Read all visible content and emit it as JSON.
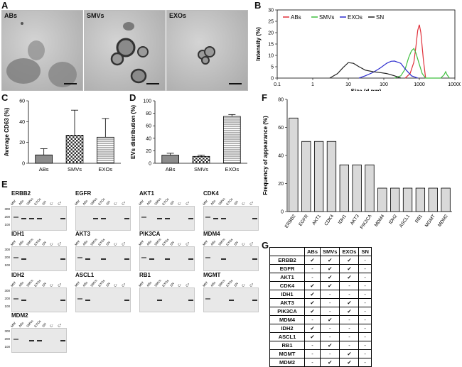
{
  "panels": {
    "A": "A",
    "B": "B",
    "C": "C",
    "D": "D",
    "E": "E",
    "F": "F",
    "G": "G"
  },
  "tem": [
    {
      "label": "ABs"
    },
    {
      "label": "SMVs"
    },
    {
      "label": "EXOs"
    }
  ],
  "chart_data": [
    {
      "type": "line",
      "panel": "B",
      "title": "",
      "xlabel": "Size (d.nm)",
      "ylabel": "Intensity (%)",
      "xscale": "log",
      "xlim": [
        0.1,
        10000
      ],
      "ylim": [
        0,
        30
      ],
      "xticks": [
        "0.1",
        "1",
        "10",
        "100",
        "1000",
        "10000"
      ],
      "yticks": [
        "0",
        "5",
        "10",
        "15",
        "20",
        "25",
        "30"
      ],
      "legend": "top-left",
      "series": [
        {
          "name": "ABs",
          "color": "#e0303a",
          "x": [
            400,
            550,
            700,
            800,
            900,
            1000,
            1100,
            1300,
            1500
          ],
          "y": [
            0,
            2,
            7,
            14,
            21,
            23.5,
            20,
            8,
            0
          ]
        },
        {
          "name": "SMVs",
          "color": "#3fbf3f",
          "x": [
            200,
            300,
            400,
            500,
            600,
            700,
            800,
            1000,
            1200,
            1500,
            4000,
            5000,
            5500,
            6000,
            7000
          ],
          "y": [
            0,
            1,
            4,
            9,
            12,
            13,
            11,
            6,
            2,
            0,
            0,
            1.5,
            2.8,
            1.5,
            0
          ]
        },
        {
          "name": "EXOs",
          "color": "#2e2ecf",
          "x": [
            20,
            30,
            50,
            80,
            120,
            160,
            200,
            300,
            400,
            600,
            900
          ],
          "y": [
            0,
            1,
            2.5,
            4.5,
            6.5,
            7.4,
            7.5,
            6.5,
            4,
            1,
            0
          ]
        },
        {
          "name": "SN",
          "color": "#222222",
          "x": [
            3,
            5,
            7,
            10,
            14,
            20,
            30,
            50,
            80,
            120,
            200,
            300
          ],
          "y": [
            0,
            2,
            4.5,
            6.8,
            6.5,
            5,
            3.5,
            2.8,
            2.4,
            2,
            1,
            0
          ]
        }
      ]
    },
    {
      "type": "bar",
      "panel": "C",
      "ylabel": "Average CD63 (%)",
      "ylim": [
        0,
        60
      ],
      "yticks": [
        "0",
        "20",
        "40",
        "60"
      ],
      "categories": [
        "ABs",
        "SMVs",
        "EXOs"
      ],
      "values": [
        8,
        27,
        25
      ],
      "errors": [
        6,
        24,
        18
      ]
    },
    {
      "type": "bar",
      "panel": "D",
      "ylabel": "EVs distribution (%)",
      "ylim": [
        0,
        100
      ],
      "yticks": [
        "0",
        "20",
        "40",
        "60",
        "80",
        "100"
      ],
      "categories": [
        "ABs",
        "SMVs",
        "EXOs"
      ],
      "values": [
        13,
        11,
        75
      ],
      "errors": [
        3,
        2,
        3
      ]
    },
    {
      "type": "bar",
      "panel": "F",
      "ylabel": "Frequency of appearance (%)",
      "ylim": [
        0,
        80
      ],
      "yticks": [
        "0",
        "20",
        "40",
        "60",
        "80"
      ],
      "categories": [
        "ERBB2",
        "EGFR",
        "AKT1",
        "CDK4",
        "IDH1",
        "AKT3",
        "PIK3CA",
        "MDM4",
        "IDH2",
        "ASCL1",
        "RB1",
        "MGMT",
        "MDM2"
      ],
      "values": [
        66.7,
        50,
        50,
        50,
        33.3,
        33.3,
        33.3,
        16.7,
        16.7,
        16.7,
        16.7,
        16.7,
        16.7
      ]
    }
  ],
  "gels": [
    {
      "name": "ERBB2",
      "ladder": [
        "300",
        "200",
        "100"
      ],
      "lanes": [
        "MW",
        "ABs",
        "SMVs",
        "EXOs",
        "SN",
        "C-",
        "C+"
      ],
      "bands": [
        0,
        1,
        2,
        3,
        6
      ]
    },
    {
      "name": "EGFR",
      "ladder": [],
      "lanes": [
        "MW",
        "ABs",
        "SMVs",
        "EXOs",
        "SN",
        "C-",
        "C+"
      ],
      "bands": [
        2,
        3,
        6
      ]
    },
    {
      "name": "AKT1",
      "ladder": [],
      "lanes": [
        "MW",
        "ABs",
        "SMVs",
        "EXOs",
        "SN",
        "C-",
        "C+"
      ],
      "bands": [
        0,
        2,
        3,
        6
      ]
    },
    {
      "name": "CDK4",
      "ladder": [],
      "lanes": [
        "MW",
        "ABs",
        "SMVs",
        "EXOs",
        "SN",
        "C-",
        "C+"
      ],
      "bands": [
        0,
        1,
        2,
        6
      ]
    },
    {
      "name": "IDH1",
      "ladder": [
        "300",
        "200",
        "100"
      ],
      "lanes": [
        "MW",
        "ABs",
        "SMVs",
        "EXOs",
        "SN",
        "C-",
        "C+"
      ],
      "bands": [
        0,
        1,
        6
      ]
    },
    {
      "name": "AKT3",
      "ladder": [],
      "lanes": [
        "MW",
        "ABs",
        "SMVs",
        "EXOs",
        "SN",
        "C-",
        "C+"
      ],
      "bands": [
        0,
        1,
        3,
        6
      ]
    },
    {
      "name": "PIK3CA",
      "ladder": [],
      "lanes": [
        "MW",
        "ABs",
        "SMVs",
        "EXOs",
        "SN",
        "C-",
        "C+"
      ],
      "bands": [
        0,
        1,
        3,
        6
      ]
    },
    {
      "name": "MDM4",
      "ladder": [],
      "lanes": [
        "MW",
        "ABs",
        "SMVs",
        "EXOs",
        "SN",
        "C-",
        "C+"
      ],
      "bands": [
        0,
        2,
        6
      ]
    },
    {
      "name": "IDH2",
      "ladder": [
        "300",
        "200",
        "100"
      ],
      "lanes": [
        "MW",
        "ABs",
        "SMVs",
        "EXOs",
        "SN",
        "C-",
        "C+"
      ],
      "bands": [
        0,
        1,
        6
      ]
    },
    {
      "name": "ASCL1",
      "ladder": [],
      "lanes": [
        "MW",
        "ABs",
        "SMVs",
        "EXOs",
        "SN",
        "C-",
        "C+"
      ],
      "bands": [
        0,
        1,
        6
      ]
    },
    {
      "name": "RB1",
      "ladder": [],
      "lanes": [
        "MW",
        "ABs",
        "SMVs",
        "EXOs",
        "SN",
        "C-",
        "C+"
      ],
      "bands": [
        2,
        6
      ]
    },
    {
      "name": "MGMT",
      "ladder": [],
      "lanes": [
        "MW",
        "ABs",
        "SMVs",
        "EXOs",
        "SN",
        "C-",
        "C+"
      ],
      "bands": [
        0,
        3,
        6
      ]
    },
    {
      "name": "MDM2",
      "ladder": [
        "300",
        "200",
        "100"
      ],
      "lanes": [
        "MW",
        "ABs",
        "SMVs",
        "EXOs",
        "SN",
        "C-",
        "C+"
      ],
      "bands": [
        0,
        2,
        3,
        6
      ]
    }
  ],
  "table": {
    "headers": [
      "",
      "ABs",
      "SMVs",
      "EXOs",
      "SN"
    ],
    "rows": [
      [
        "ERBB2",
        "✔",
        "✔",
        "✔",
        "-"
      ],
      [
        "EGFR",
        "-",
        "✔",
        "✔",
        "-"
      ],
      [
        "AKT1",
        "-",
        "✔",
        "✔",
        "-"
      ],
      [
        "CDK4",
        "✔",
        "✔",
        "-",
        "-"
      ],
      [
        "IDH1",
        "✔",
        "-",
        "-",
        "-"
      ],
      [
        "AKT3",
        "✔",
        "-",
        "✔",
        "-"
      ],
      [
        "PIK3CA",
        "✔",
        "-",
        "✔",
        "-"
      ],
      [
        "MDM4",
        "-",
        "✔",
        "-",
        "-"
      ],
      [
        "IDH2",
        "✔",
        "-",
        "-",
        "-"
      ],
      [
        "ASCL1",
        "✔",
        "-",
        "-",
        "-"
      ],
      [
        "RB1",
        "-",
        "✔",
        "-",
        "-"
      ],
      [
        "MGMT",
        "-",
        "-",
        "✔",
        "-"
      ],
      [
        "MDM2",
        "-",
        "✔",
        "✔",
        "-"
      ]
    ]
  }
}
